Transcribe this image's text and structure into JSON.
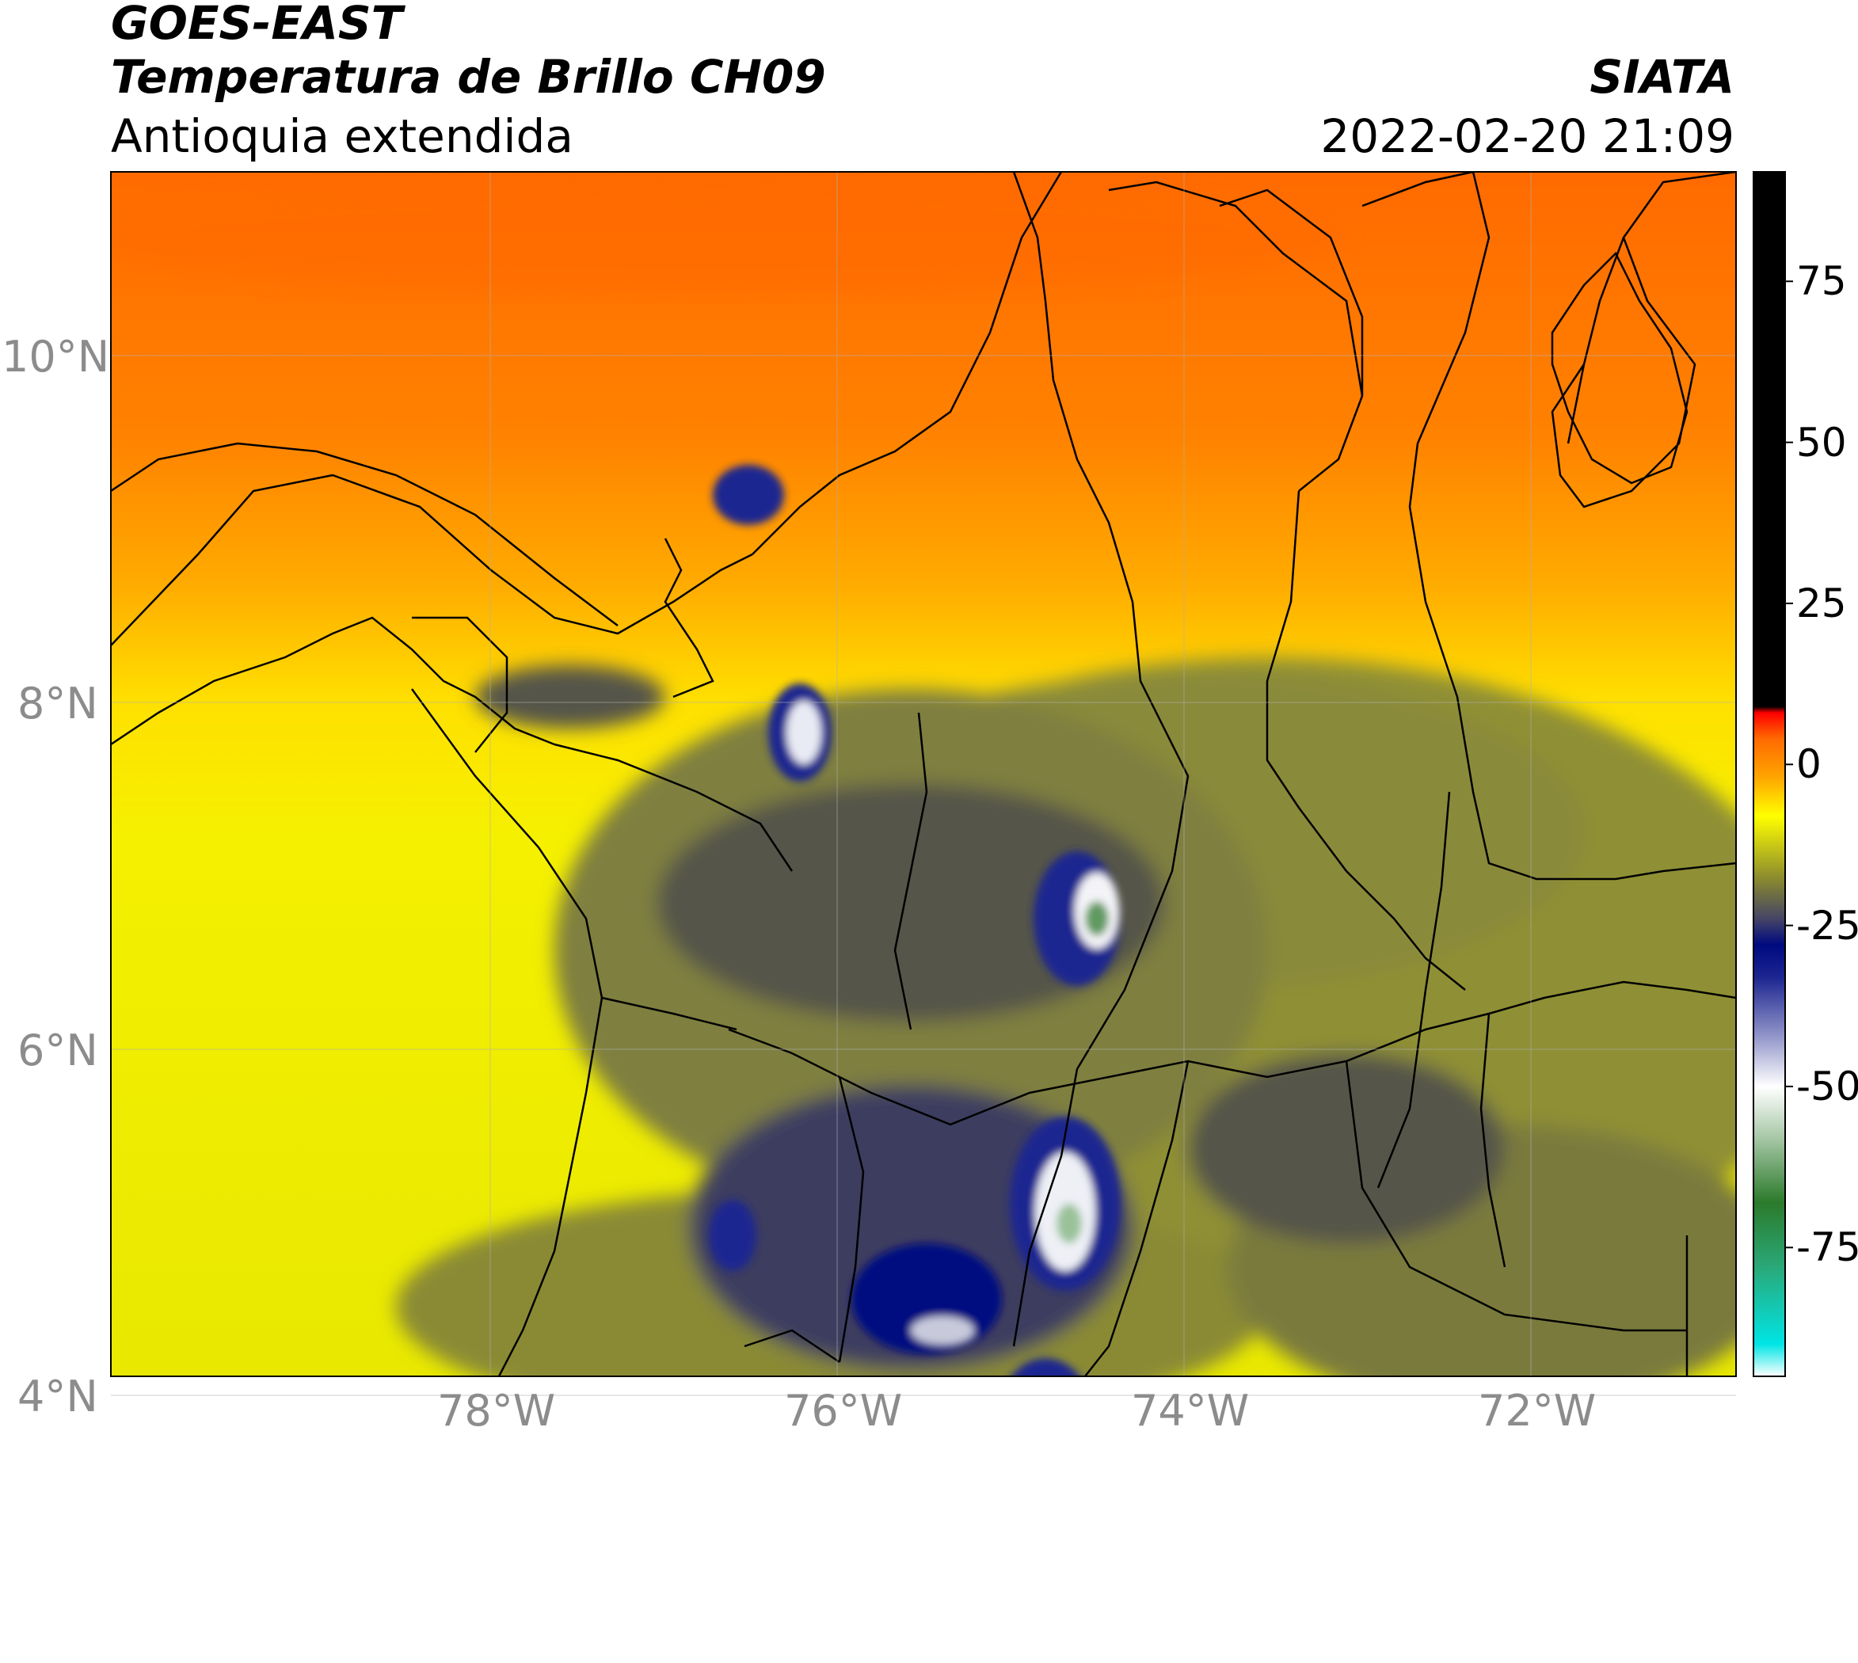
{
  "header": {
    "satellite": "GOES-EAST",
    "product": "Temperatura de Brillo CH09",
    "region": "Antioquia extendida",
    "agency": "SIATA",
    "datetime": "2022-02-20 21:09"
  },
  "map": {
    "lat_ticks": [
      "10°N",
      "8°N",
      "6°N",
      "4°N"
    ],
    "lon_ticks": [
      "78°W",
      "76°W",
      "74°W",
      "72°W"
    ],
    "extent": {
      "lon": [
        -80.2,
        -70.8
      ],
      "lat": [
        2.9,
        10.97
      ]
    }
  },
  "colorbar": {
    "ticks": [
      {
        "value": 75,
        "label": "75"
      },
      {
        "value": 50,
        "label": "50"
      },
      {
        "value": 25,
        "label": "25"
      },
      {
        "value": 0,
        "label": "0"
      },
      {
        "value": -25,
        "label": "-25"
      },
      {
        "value": -50,
        "label": "-50"
      },
      {
        "value": -75,
        "label": "-75"
      }
    ],
    "range": [
      -95,
      92
    ],
    "stops": [
      {
        "value": -95,
        "color": "#ffffff"
      },
      {
        "value": -90,
        "color": "#00e5e5"
      },
      {
        "value": -78,
        "color": "#2aa878"
      },
      {
        "value": -68,
        "color": "#2b7a2b"
      },
      {
        "value": -58,
        "color": "#a7c7a7"
      },
      {
        "value": -50,
        "color": "#ffffff"
      },
      {
        "value": -42,
        "color": "#8f93c8"
      },
      {
        "value": -33,
        "color": "#1c2590"
      },
      {
        "value": -28,
        "color": "#000a80"
      },
      {
        "value": -24,
        "color": "#444466"
      },
      {
        "value": -18,
        "color": "#878730"
      },
      {
        "value": -8,
        "color": "#ffff00"
      },
      {
        "value": -2,
        "color": "#ffa500"
      },
      {
        "value": 4,
        "color": "#ff6a00"
      },
      {
        "value": 8,
        "color": "#ff0000"
      },
      {
        "value": 9,
        "color": "#000000"
      },
      {
        "value": 92,
        "color": "#000000"
      }
    ]
  }
}
